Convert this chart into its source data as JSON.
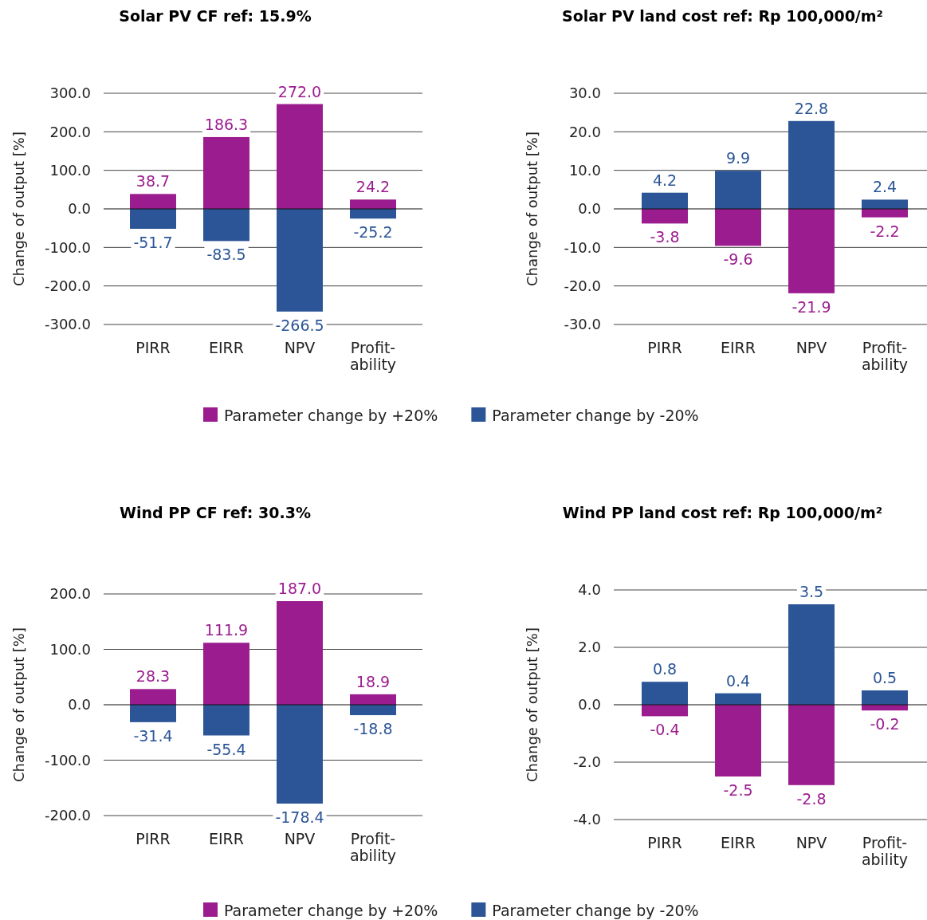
{
  "chart_data": [
    {
      "type": "bar",
      "title": "Solar PV CF ref: 15.9%",
      "ylabel": "Change of output [%]",
      "categories": [
        "PIRR",
        "EIRR",
        "NPV",
        "Profit-ability"
      ],
      "stacked": true,
      "grid": "y",
      "legend": "bottom",
      "ylim": [
        -300,
        300
      ],
      "yticks": [
        {
          "value": -300,
          "label": "-300.0"
        },
        {
          "value": -200,
          "label": "-200.0"
        },
        {
          "value": -100,
          "label": "-100.0"
        },
        {
          "value": 0,
          "label": "0.0"
        },
        {
          "value": 100,
          "label": "100.0"
        },
        {
          "value": 200,
          "label": "200.0"
        },
        {
          "value": 300,
          "label": "300.0"
        }
      ],
      "series": [
        {
          "name": "Parameter change by +20%",
          "color": "#9b1c8f",
          "values": [
            38.7,
            186.3,
            272.0,
            24.2
          ],
          "value_labels": [
            "38.7",
            "186.3",
            "272.0",
            "24.2"
          ]
        },
        {
          "name": "Parameter change by -20%",
          "color": "#2b5597",
          "values": [
            -51.7,
            -83.5,
            -266.5,
            -25.2
          ],
          "value_labels": [
            "-51.7",
            "-83.5",
            "-266.5",
            "-25.2"
          ]
        }
      ]
    },
    {
      "type": "bar",
      "title": "Solar PV land cost ref: Rp 100,000/m²",
      "ylabel": "Change of output [%]",
      "categories": [
        "PIRR",
        "EIRR",
        "NPV",
        "Profit-ability"
      ],
      "stacked": true,
      "grid": "y",
      "ylim": [
        -30,
        30
      ],
      "yticks": [
        {
          "value": -30,
          "label": "-30.0"
        },
        {
          "value": -20,
          "label": "-20.0"
        },
        {
          "value": -10,
          "label": "-10.0"
        },
        {
          "value": 0,
          "label": "0.0"
        },
        {
          "value": 10,
          "label": "10.0"
        },
        {
          "value": 20,
          "label": "20.0"
        },
        {
          "value": 30,
          "label": "30.0"
        }
      ],
      "series": [
        {
          "color": "#9b1c8f",
          "values": [
            -3.8,
            -9.6,
            -21.9,
            -2.2
          ],
          "value_labels": [
            "-3.8",
            "-9.6",
            "-21.9",
            "-2.2"
          ]
        },
        {
          "color": "#2b5597",
          "values": [
            4.2,
            9.9,
            22.8,
            2.4
          ],
          "value_labels": [
            "4.2",
            "9.9",
            "22.8",
            "2.4"
          ]
        }
      ]
    },
    {
      "type": "bar",
      "title": "Wind PP CF ref: 30.3%",
      "ylabel": "Change of output [%]",
      "categories": [
        "PIRR",
        "EIRR",
        "NPV",
        "Profit-ability"
      ],
      "stacked": true,
      "grid": "y",
      "legend": "bottom",
      "ylim": [
        -200,
        200
      ],
      "yticks": [
        {
          "value": -200,
          "label": "-200.0"
        },
        {
          "value": -100,
          "label": "-100.0"
        },
        {
          "value": 0,
          "label": "0.0"
        },
        {
          "value": 100,
          "label": "100.0"
        },
        {
          "value": 200,
          "label": "200.0"
        }
      ],
      "series": [
        {
          "name": "Parameter change by +20%",
          "color": "#9b1c8f",
          "values": [
            28.3,
            111.9,
            187.0,
            18.9
          ],
          "value_labels": [
            "28.3",
            "111.9",
            "187.0",
            "18.9"
          ]
        },
        {
          "name": "Parameter change by -20%",
          "color": "#2b5597",
          "values": [
            -31.4,
            -55.4,
            -178.4,
            -18.8
          ],
          "value_labels": [
            "-31.4",
            "-55.4",
            "-178.4",
            "-18.8"
          ]
        }
      ]
    },
    {
      "type": "bar",
      "title": "Wind PP land cost ref: Rp 100,000/m²",
      "ylabel": "Change of output [%]",
      "categories": [
        "PIRR",
        "EIRR",
        "NPV",
        "Profit-ability"
      ],
      "stacked": true,
      "grid": "y",
      "ylim": [
        -4,
        4
      ],
      "yticks": [
        {
          "value": -4,
          "label": "-4.0"
        },
        {
          "value": -2,
          "label": "-2.0"
        },
        {
          "value": 0,
          "label": "0.0"
        },
        {
          "value": 2,
          "label": "2.0"
        },
        {
          "value": 4,
          "label": "4.0"
        }
      ],
      "series": [
        {
          "color": "#9b1c8f",
          "values": [
            -0.4,
            -2.5,
            -2.8,
            -0.2
          ],
          "value_labels": [
            "-0.4",
            "-2.5",
            "-2.8",
            "-0.2"
          ]
        },
        {
          "color": "#2b5597",
          "values": [
            0.8,
            0.4,
            3.5,
            0.5
          ],
          "value_labels": [
            "0.8",
            "0.4",
            "3.5",
            "0.5"
          ]
        }
      ]
    }
  ]
}
